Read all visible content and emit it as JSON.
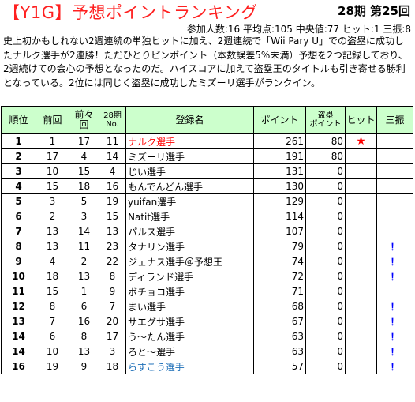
{
  "header": {
    "title": "【Y1G】予想ポイントランキング",
    "round": "28期 第25回",
    "stats": "参加人数:16 平均点:105 中央値:77 ヒット:1 三振:8"
  },
  "description": "史上初かもしれない2週連続の単独ヒットに加え、2週連続で「Wii Pary U」での盗塁に成功したナルク選手が2連勝！ただひとりピンポイント（本数誤差5%未満）予想を2つ記録しており、2週続けての会心の予想となったのだ。ハイスコアに加えて盗塁王のタイトルも引き寄せる勝利となっている。2位には同じく盗塁に成功したミズーリ選手がランクイン。",
  "columns": {
    "rank": "順位",
    "prev": "前回",
    "prev2": "前々\n回",
    "term28": "28期\nNo.",
    "name": "登録名",
    "points": "ポイント",
    "steal": "盗塁\nポイント",
    "hit": "ヒット",
    "strikeout": "三振"
  },
  "rows": [
    {
      "rank": "1",
      "prev": "1",
      "prev2": "17",
      "no": "11",
      "name": "ナルク選手",
      "name_color": "red",
      "points": "261",
      "steal": "80",
      "hit": "★",
      "strikeout": ""
    },
    {
      "rank": "2",
      "prev": "17",
      "prev2": "4",
      "no": "14",
      "name": "ミズーリ選手",
      "name_color": "",
      "points": "191",
      "steal": "80",
      "hit": "",
      "strikeout": ""
    },
    {
      "rank": "3",
      "prev": "10",
      "prev2": "15",
      "no": "4",
      "name": "じい選手",
      "name_color": "",
      "points": "131",
      "steal": "0",
      "hit": "",
      "strikeout": ""
    },
    {
      "rank": "4",
      "prev": "15",
      "prev2": "18",
      "no": "16",
      "name": "もんでんどん選手",
      "name_color": "",
      "points": "130",
      "steal": "0",
      "hit": "",
      "strikeout": ""
    },
    {
      "rank": "5",
      "prev": "3",
      "prev2": "5",
      "no": "19",
      "name": "yuifan選手",
      "name_color": "",
      "points": "129",
      "steal": "0",
      "hit": "",
      "strikeout": ""
    },
    {
      "rank": "6",
      "prev": "2",
      "prev2": "3",
      "no": "15",
      "name": "Natit選手",
      "name_color": "",
      "points": "114",
      "steal": "0",
      "hit": "",
      "strikeout": ""
    },
    {
      "rank": "7",
      "prev": "13",
      "prev2": "14",
      "no": "13",
      "name": "パルス選手",
      "name_color": "",
      "points": "107",
      "steal": "0",
      "hit": "",
      "strikeout": ""
    },
    {
      "rank": "8",
      "prev": "13",
      "prev2": "11",
      "no": "23",
      "name": "タナリン選手",
      "name_color": "",
      "points": "79",
      "steal": "0",
      "hit": "",
      "strikeout": "！"
    },
    {
      "rank": "9",
      "prev": "4",
      "prev2": "2",
      "no": "22",
      "name": "ジェナス選手＠予想王",
      "name_color": "",
      "points": "74",
      "steal": "0",
      "hit": "",
      "strikeout": "！"
    },
    {
      "rank": "10",
      "prev": "18",
      "prev2": "13",
      "no": "8",
      "name": "ディランド選手",
      "name_color": "",
      "points": "72",
      "steal": "0",
      "hit": "",
      "strikeout": "！"
    },
    {
      "rank": "11",
      "prev": "15",
      "prev2": "1",
      "no": "9",
      "name": "ボチョコ選手",
      "name_color": "",
      "points": "71",
      "steal": "0",
      "hit": "",
      "strikeout": ""
    },
    {
      "rank": "12",
      "prev": "8",
      "prev2": "6",
      "no": "7",
      "name": "まい選手",
      "name_color": "",
      "points": "68",
      "steal": "0",
      "hit": "",
      "strikeout": "！"
    },
    {
      "rank": "13",
      "prev": "7",
      "prev2": "16",
      "no": "20",
      "name": "サエグサ選手",
      "name_color": "",
      "points": "67",
      "steal": "0",
      "hit": "",
      "strikeout": "！"
    },
    {
      "rank": "14",
      "prev": "6",
      "prev2": "8",
      "no": "17",
      "name": "う～たん選手",
      "name_color": "",
      "points": "63",
      "steal": "0",
      "hit": "",
      "strikeout": "！"
    },
    {
      "rank": "14",
      "prev": "10",
      "prev2": "13",
      "no": "3",
      "name": "ろと～選手",
      "name_color": "",
      "points": "63",
      "steal": "0",
      "hit": "",
      "strikeout": "！"
    },
    {
      "rank": "16",
      "prev": "19",
      "prev2": "9",
      "no": "18",
      "name": "らすこう選手",
      "name_color": "blue",
      "points": "57",
      "steal": "0",
      "hit": "",
      "strikeout": "！"
    }
  ]
}
